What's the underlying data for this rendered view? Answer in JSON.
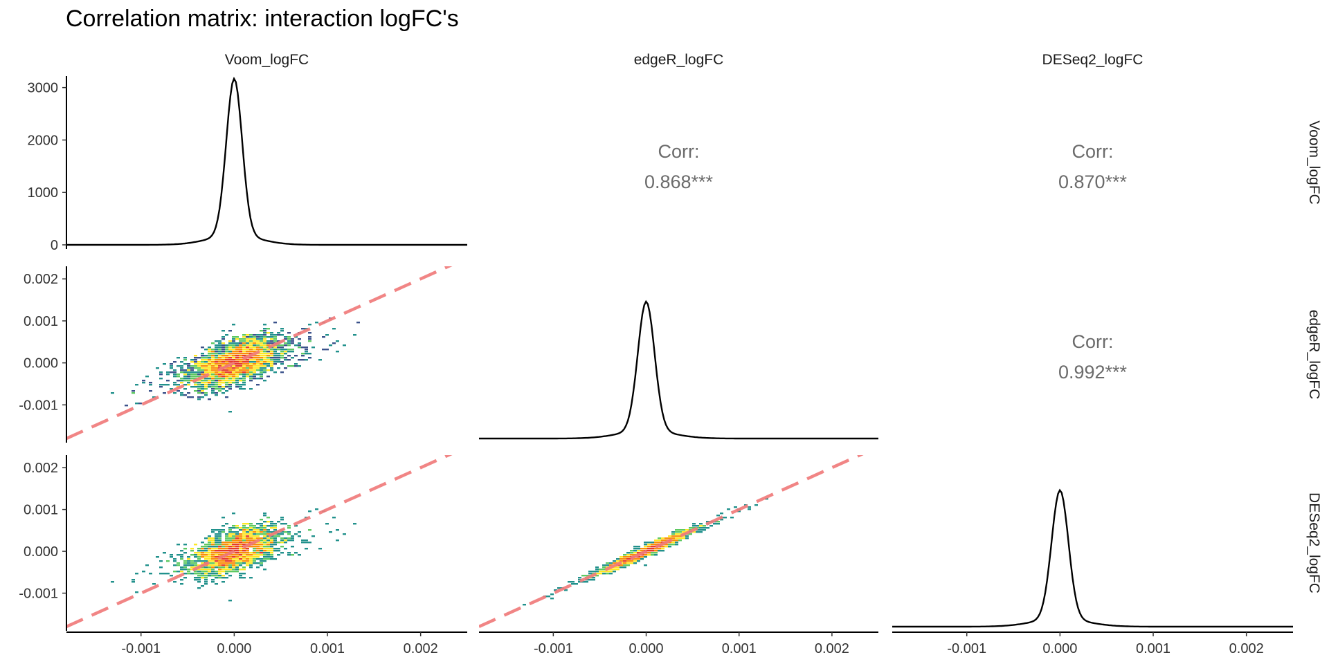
{
  "title": "Correlation matrix: interaction logFC's",
  "variables": [
    "Voom_logFC",
    "edgeR_logFC",
    "DESeq2_logFC"
  ],
  "correlations": [
    {
      "row": "Voom_logFC",
      "col": "edgeR_logFC",
      "label": "Corr:",
      "value": "0.868***"
    },
    {
      "row": "Voom_logFC",
      "col": "DESeq2_logFC",
      "label": "Corr:",
      "value": "0.870***"
    },
    {
      "row": "edgeR_logFC",
      "col": "DESeq2_logFC",
      "label": "Corr:",
      "value": "0.992***"
    }
  ],
  "axes": {
    "x_ticks": [
      "-0.001",
      "0.000",
      "0.001",
      "0.002"
    ],
    "x_tick_values": [
      -0.001,
      0.0,
      0.001,
      0.002
    ],
    "y_ticks_density": [
      "0",
      "1000",
      "2000",
      "3000"
    ],
    "y_tick_values_density": [
      0,
      1000,
      2000,
      3000
    ],
    "y_ticks_scatter": [
      "0.002",
      "0.001",
      "0.000",
      "-0.001"
    ],
    "y_tick_values_scatter": [
      0.002,
      0.001,
      0.0,
      -0.001
    ]
  },
  "colors": {
    "density_line": "#000000",
    "identity_line": "#f07b7b",
    "corr_text": "#6b6b6b",
    "viridis": [
      "#440154",
      "#3b528b",
      "#21918c",
      "#5ec962",
      "#fde725",
      "#f98e09",
      "#e63b2b"
    ]
  },
  "chart_data": {
    "type": "pairs-matrix",
    "title": "Correlation matrix: interaction logFC's",
    "variables": [
      "Voom_logFC",
      "edgeR_logFC",
      "DESeq2_logFC"
    ],
    "xlim": [
      -0.0018,
      0.0025
    ],
    "density": {
      "peak_x": [
        0.0,
        0.0,
        0.0
      ],
      "ylim": [
        0,
        3200
      ],
      "peak_y_voom": 3170
    },
    "scatter_panels": [
      {
        "x": "Voom_logFC",
        "y": "edgeR_logFC",
        "ylim": [
          -0.0019,
          0.0023
        ],
        "identity_line": true,
        "spread": 0.00024
      },
      {
        "x": "Voom_logFC",
        "y": "DESeq2_logFC",
        "ylim": [
          -0.0019,
          0.0023
        ],
        "identity_line": true,
        "spread": 0.00024
      },
      {
        "x": "edgeR_logFC",
        "y": "DESeq2_logFC",
        "ylim": [
          -0.0019,
          0.0023
        ],
        "identity_line": true,
        "spread": 6e-05
      }
    ],
    "correlations": [
      {
        "x": "Voom_logFC",
        "y": "edgeR_logFC",
        "r": 0.868,
        "stars": "***"
      },
      {
        "x": "Voom_logFC",
        "y": "DESeq2_logFC",
        "r": 0.87,
        "stars": "***"
      },
      {
        "x": "edgeR_logFC",
        "y": "DESeq2_logFC",
        "r": 0.992,
        "stars": "***"
      }
    ]
  }
}
